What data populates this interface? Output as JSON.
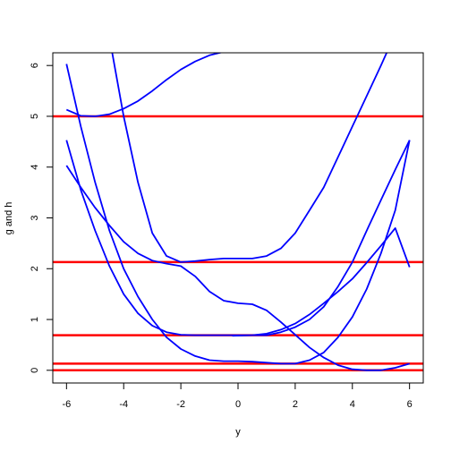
{
  "chart_data": {
    "type": "line",
    "title": "",
    "xlabel": "y",
    "ylabel": "g and h",
    "xlim": [
      -6.48,
      6.48
    ],
    "ylim": [
      -0.25,
      6.25
    ],
    "x_ticks": [
      -6,
      -4,
      -2,
      0,
      2,
      4,
      6
    ],
    "y_ticks": [
      0,
      1,
      2,
      3,
      4,
      5,
      6
    ],
    "grid": false,
    "legend": "none",
    "colors": {
      "curves": "#0000ff",
      "hlines": "#ff0000"
    },
    "curves": [
      {
        "points": [
          [
            -6,
            5.13
          ],
          [
            -5.5,
            5.01
          ],
          [
            -5,
            5.0
          ],
          [
            -4.5,
            5.04
          ],
          [
            -4,
            5.15
          ],
          [
            -3.5,
            5.3
          ],
          [
            -3,
            5.5
          ],
          [
            -2.5,
            5.72
          ],
          [
            -2,
            5.92
          ],
          [
            -1.5,
            6.08
          ],
          [
            -1,
            6.2
          ],
          [
            -0.5,
            6.27
          ]
        ]
      },
      {
        "points": [
          [
            -4.4,
            6.25
          ],
          [
            -4,
            5.0
          ],
          [
            -3.5,
            3.7
          ],
          [
            -3,
            2.7
          ],
          [
            -2.5,
            2.25
          ],
          [
            -2,
            2.13
          ],
          [
            -1.5,
            2.15
          ],
          [
            -1,
            2.18
          ],
          [
            -0.5,
            2.2
          ],
          [
            0,
            2.2
          ],
          [
            0.5,
            2.2
          ],
          [
            1,
            2.25
          ],
          [
            1.5,
            2.4
          ],
          [
            2,
            2.7
          ],
          [
            2.5,
            3.15
          ],
          [
            3,
            3.6
          ],
          [
            3.5,
            4.2
          ],
          [
            4,
            4.8
          ],
          [
            4.5,
            5.4
          ],
          [
            5,
            6.0
          ],
          [
            5.2,
            6.25
          ]
        ]
      },
      {
        "points": [
          [
            -6,
            6.03
          ],
          [
            -5.5,
            4.8
          ],
          [
            -5,
            3.7
          ],
          [
            -4.5,
            2.75
          ],
          [
            -4,
            2.0
          ],
          [
            -3.5,
            1.45
          ],
          [
            -3,
            1.0
          ],
          [
            -2.5,
            0.65
          ],
          [
            -2,
            0.42
          ],
          [
            -1.5,
            0.28
          ],
          [
            -1,
            0.2
          ],
          [
            -0.5,
            0.18
          ],
          [
            0,
            0.18
          ],
          [
            0.5,
            0.17
          ],
          [
            1,
            0.15
          ],
          [
            1.5,
            0.13
          ],
          [
            2,
            0.13
          ],
          [
            2.5,
            0.2
          ],
          [
            3,
            0.35
          ],
          [
            3.5,
            0.65
          ],
          [
            4,
            1.05
          ],
          [
            4.5,
            1.6
          ],
          [
            5,
            2.3
          ],
          [
            5.5,
            3.15
          ],
          [
            6,
            4.53
          ]
        ]
      },
      {
        "points": [
          [
            -6,
            4.53
          ],
          [
            -5.5,
            3.55
          ],
          [
            -5,
            2.75
          ],
          [
            -4.5,
            2.05
          ],
          [
            -4,
            1.5
          ],
          [
            -3.5,
            1.12
          ],
          [
            -3,
            0.88
          ],
          [
            -2.5,
            0.75
          ],
          [
            -2,
            0.7
          ],
          [
            -1.5,
            0.69
          ],
          [
            -1,
            0.69
          ],
          [
            -0.5,
            0.69
          ],
          [
            0,
            0.69
          ],
          [
            0.5,
            0.69
          ],
          [
            1,
            0.69
          ],
          [
            1.5,
            0.75
          ],
          [
            2,
            0.85
          ],
          [
            2.5,
            1.0
          ],
          [
            3,
            1.25
          ],
          [
            3.5,
            1.65
          ],
          [
            4,
            2.13
          ],
          [
            4.5,
            2.75
          ],
          [
            5,
            3.35
          ],
          [
            5.5,
            3.95
          ],
          [
            6,
            4.53
          ]
        ]
      },
      {
        "points": [
          [
            -6,
            4.03
          ],
          [
            -5.5,
            3.6
          ],
          [
            -5,
            3.2
          ],
          [
            -4.5,
            2.85
          ],
          [
            -4,
            2.53
          ],
          [
            -3.5,
            2.3
          ],
          [
            -3,
            2.16
          ],
          [
            -2.5,
            2.1
          ],
          [
            -2,
            2.05
          ],
          [
            -1.5,
            1.85
          ],
          [
            -1,
            1.55
          ],
          [
            -0.5,
            1.37
          ],
          [
            0,
            1.32
          ],
          [
            0.5,
            1.3
          ],
          [
            1,
            1.18
          ],
          [
            1.5,
            0.95
          ],
          [
            2,
            0.7
          ],
          [
            2.5,
            0.45
          ],
          [
            3,
            0.25
          ],
          [
            3.5,
            0.1
          ],
          [
            4,
            0.02
          ],
          [
            4.5,
            0.0
          ],
          [
            5,
            0.0
          ],
          [
            5.5,
            0.05
          ],
          [
            6,
            0.13
          ]
        ]
      },
      {
        "points": [
          [
            -0.2,
            0.68
          ],
          [
            0.5,
            0.69
          ],
          [
            1,
            0.72
          ],
          [
            1.5,
            0.8
          ],
          [
            2,
            0.92
          ],
          [
            2.5,
            1.1
          ],
          [
            3,
            1.32
          ],
          [
            3.5,
            1.55
          ],
          [
            4,
            1.8
          ],
          [
            4.5,
            2.12
          ],
          [
            5,
            2.45
          ],
          [
            5.5,
            2.8
          ],
          [
            6,
            2.03
          ]
        ]
      }
    ],
    "hlines": [
      5.0,
      2.13,
      0.69,
      0.13,
      0.0
    ]
  }
}
